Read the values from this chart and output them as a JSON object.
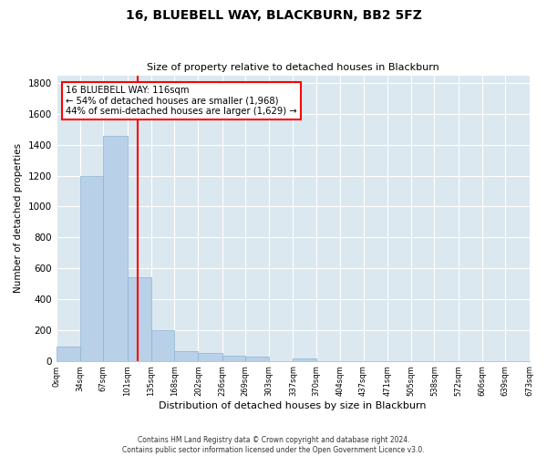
{
  "title": "16, BLUEBELL WAY, BLACKBURN, BB2 5FZ",
  "subtitle": "Size of property relative to detached houses in Blackburn",
  "xlabel": "Distribution of detached houses by size in Blackburn",
  "ylabel": "Number of detached properties",
  "bar_color": "#b8d0e8",
  "bar_edge_color": "#8ab4d4",
  "bg_color": "#dce8f0",
  "grid_color": "#ffffff",
  "red_line_x": 116,
  "annotation_line1": "16 BLUEBELL WAY: 116sqm",
  "annotation_line2": "← 54% of detached houses are smaller (1,968)",
  "annotation_line3": "44% of semi-detached houses are larger (1,629) →",
  "bin_edges": [
    0,
    34,
    67,
    101,
    135,
    168,
    202,
    236,
    269,
    303,
    337,
    370,
    404,
    437,
    471,
    505,
    538,
    572,
    606,
    639,
    673
  ],
  "bin_counts": [
    90,
    1200,
    1460,
    540,
    200,
    65,
    50,
    35,
    25,
    0,
    15,
    0,
    0,
    0,
    0,
    0,
    0,
    0,
    0,
    0
  ],
  "ylim": [
    0,
    1850
  ],
  "yticks": [
    0,
    200,
    400,
    600,
    800,
    1000,
    1200,
    1400,
    1600,
    1800
  ],
  "footnote1": "Contains HM Land Registry data © Crown copyright and database right 2024.",
  "footnote2": "Contains public sector information licensed under the Open Government Licence v3.0."
}
